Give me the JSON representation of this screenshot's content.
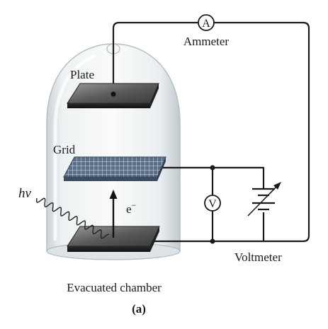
{
  "labels": {
    "ammeter_symbol": "A",
    "ammeter": "Ammeter",
    "plate": "Plate",
    "grid": "Grid",
    "photon": "hν",
    "electron": "e",
    "electron_charge": "−",
    "voltmeter_symbol": "V",
    "voltmeter": "Voltmeter",
    "chamber": "Evacuated chamber",
    "panel": "(a)"
  },
  "colors": {
    "photon": "#a0206a",
    "wire": "#1a1a1a"
  }
}
